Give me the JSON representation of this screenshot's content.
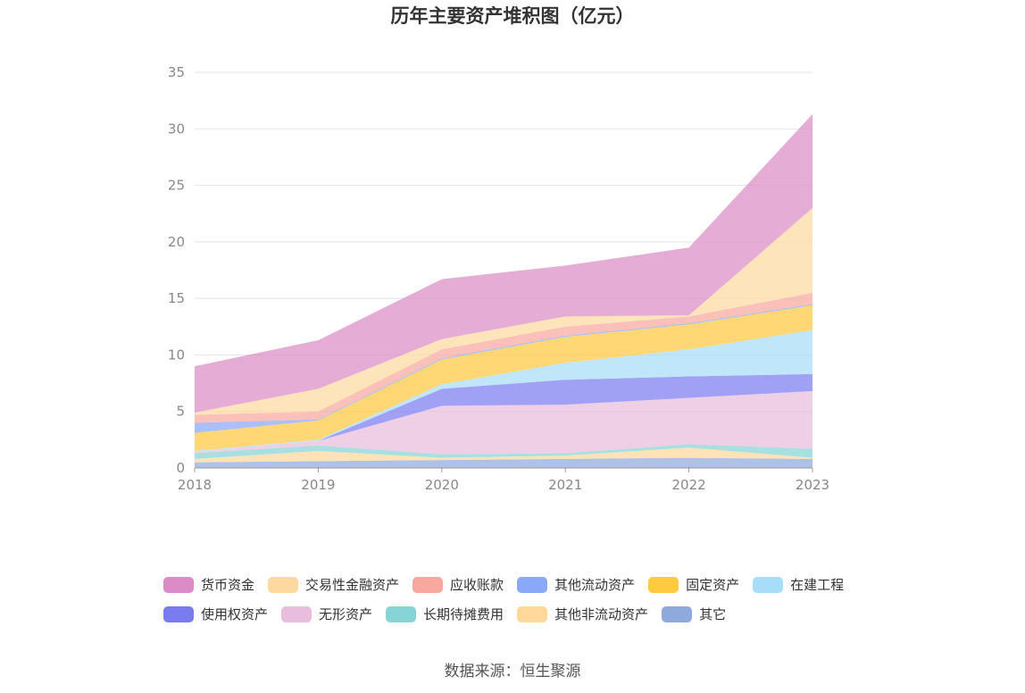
{
  "chart_data": {
    "type": "area",
    "stacked": true,
    "title": "历年主要资产堆积图（亿元）",
    "x": [
      "2018",
      "2019",
      "2020",
      "2021",
      "2022",
      "2023"
    ],
    "ylim": [
      0,
      35
    ],
    "yticks": [
      "0",
      "5",
      "10",
      "15",
      "20",
      "25",
      "30",
      "35"
    ],
    "grid": true,
    "legend_position": "bottom",
    "series": [
      {
        "name": "其它",
        "color": "#8eaadc",
        "values": [
          0.5,
          0.6,
          0.7,
          0.8,
          0.9,
          0.8
        ]
      },
      {
        "name": "其他非流动资产",
        "color": "#ffd89a",
        "values": [
          0.3,
          0.9,
          0.2,
          0.3,
          0.9,
          0.1
        ]
      },
      {
        "name": "长期待摊费用",
        "color": "#86d4d6",
        "values": [
          0.5,
          0.5,
          0.3,
          0.2,
          0.3,
          0.8
        ]
      },
      {
        "name": "无形资产",
        "color": "#e8bddd",
        "values": [
          0.1,
          0.4,
          4.3,
          4.3,
          4.1,
          5.1
        ]
      },
      {
        "name": "使用权资产",
        "color": "#7b7bf0",
        "values": [
          0.0,
          0.0,
          1.5,
          2.2,
          1.9,
          1.5
        ]
      },
      {
        "name": "在建工程",
        "color": "#a8ddf8",
        "values": [
          0.1,
          0.1,
          0.4,
          1.5,
          2.4,
          3.9
        ]
      },
      {
        "name": "固定资产",
        "color": "#ffc940",
        "values": [
          1.6,
          1.7,
          2.2,
          2.3,
          2.2,
          2.2
        ]
      },
      {
        "name": "其他流动资产",
        "color": "#8aa8f8",
        "values": [
          0.9,
          0.1,
          0.1,
          0.1,
          0.1,
          0.1
        ]
      },
      {
        "name": "应收账款",
        "color": "#f8a89e",
        "values": [
          0.7,
          0.7,
          0.8,
          0.8,
          0.6,
          1.0
        ]
      },
      {
        "name": "交易性金融资产",
        "color": "#fdd9a0",
        "values": [
          0.2,
          2.0,
          0.9,
          0.9,
          0.1,
          7.5
        ]
      },
      {
        "name": "货币资金",
        "color": "#db8cc6",
        "values": [
          4.1,
          4.3,
          5.3,
          4.5,
          6.0,
          8.3
        ]
      }
    ]
  },
  "legend_rows": [
    [
      {
        "label": "货币资金",
        "color": "#db8cc6"
      },
      {
        "label": "交易性金融资产",
        "color": "#fdd9a0"
      },
      {
        "label": "应收账款",
        "color": "#f8a89e"
      },
      {
        "label": "其他流动资产",
        "color": "#8aa8f8"
      },
      {
        "label": "固定资产",
        "color": "#ffc940"
      },
      {
        "label": "在建工程",
        "color": "#a8ddf8"
      }
    ],
    [
      {
        "label": "使用权资产",
        "color": "#7b7bf0"
      },
      {
        "label": "无形资产",
        "color": "#e8bddd"
      },
      {
        "label": "长期待摊费用",
        "color": "#86d4d6"
      },
      {
        "label": "其他非流动资产",
        "color": "#ffd89a"
      },
      {
        "label": "其它",
        "color": "#8eaadc"
      }
    ]
  ],
  "source": "数据来源：恒生聚源"
}
